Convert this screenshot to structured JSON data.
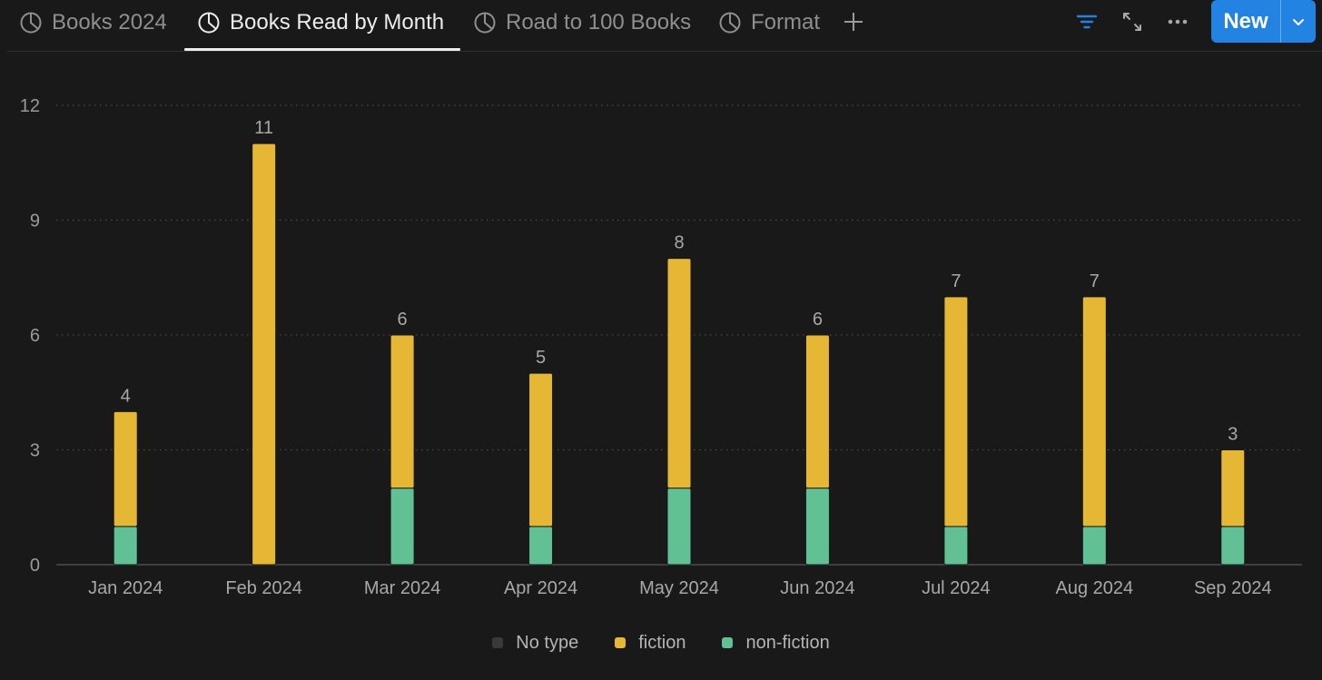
{
  "tabs": [
    {
      "label": "Books 2024",
      "active": false
    },
    {
      "label": "Books Read by Month",
      "active": true
    },
    {
      "label": "Road to 100 Books",
      "active": false
    },
    {
      "label": "Format",
      "active": false
    }
  ],
  "icons": {
    "tab": "pie-chart-icon",
    "add": "plus-icon",
    "filter": "filter-icon",
    "expand": "expand-icon",
    "more": "more-icon",
    "caret": "chevron-down-icon"
  },
  "toolbar": {
    "new_label": "New"
  },
  "colors": {
    "background": "#191919",
    "fiction": "#e6b735",
    "non_fiction": "#62c095",
    "no_type": "#3a3a3a",
    "accent": "#2383e2",
    "filter_icon": "#2383e2"
  },
  "chart_data": {
    "type": "bar",
    "stacked": true,
    "categories": [
      "Jan 2024",
      "Feb 2024",
      "Mar 2024",
      "Apr 2024",
      "May 2024",
      "Jun 2024",
      "Jul 2024",
      "Aug 2024",
      "Sep 2024"
    ],
    "series": [
      {
        "name": "No type",
        "values": [
          0,
          0,
          0,
          0,
          0,
          0,
          0,
          0,
          0
        ]
      },
      {
        "name": "non-fiction",
        "values": [
          1,
          0,
          2,
          1,
          2,
          2,
          1,
          1,
          1
        ]
      },
      {
        "name": "fiction",
        "values": [
          3,
          11,
          4,
          4,
          6,
          4,
          6,
          6,
          2
        ]
      }
    ],
    "totals": [
      "4",
      "11",
      "6",
      "5",
      "8",
      "6",
      "7",
      "7",
      "3"
    ],
    "yticks": [
      "0",
      "3",
      "6",
      "9",
      "12"
    ],
    "ylim": [
      0,
      12
    ],
    "grid": true,
    "legend": "bottom-center",
    "legend_entries": [
      "No type",
      "fiction",
      "non-fiction"
    ]
  }
}
